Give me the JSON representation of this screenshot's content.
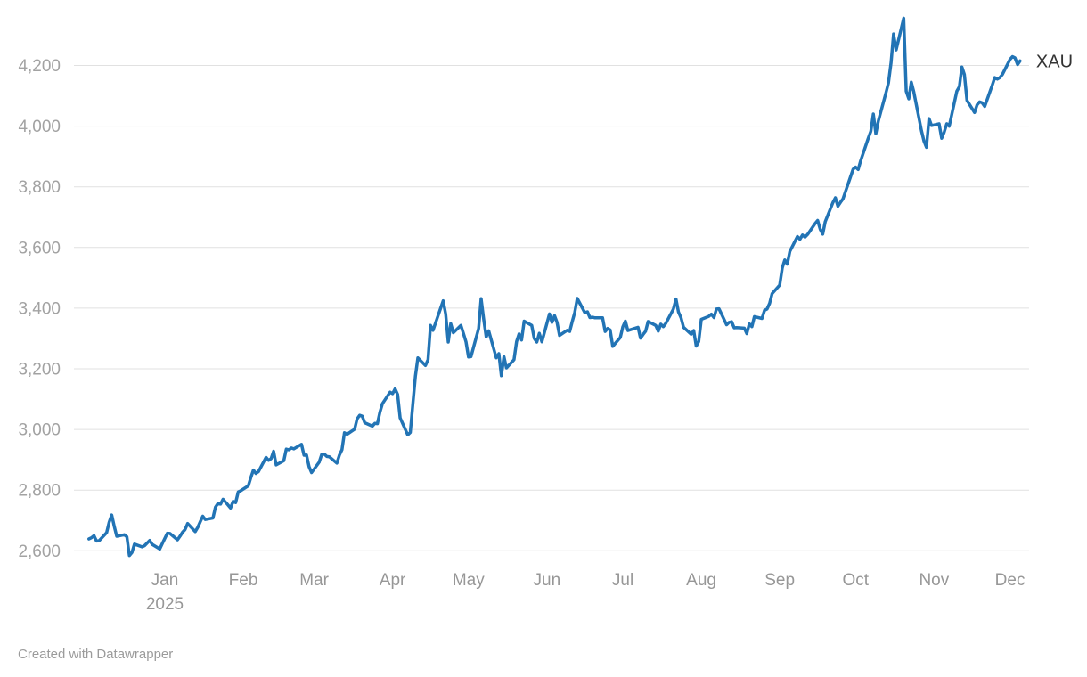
{
  "chart_data": {
    "type": "line",
    "series_name": "XAU",
    "line_color": "#2274b5",
    "grid": "horizontal",
    "legend_position": "end-of-line",
    "y_ticks": [
      2600,
      2800,
      3000,
      3200,
      3400,
      3600,
      3800,
      4000,
      4200
    ],
    "y_tick_labels": [
      "2,600",
      "2,800",
      "3,000",
      "3,200",
      "3,400",
      "3,600",
      "3,800",
      "4,000",
      "4,200"
    ],
    "ylim": [
      2560,
      4380
    ],
    "x_tick_labels": [
      "Jan",
      "Feb",
      "Mar",
      "Apr",
      "May",
      "Jun",
      "Jul",
      "Aug",
      "Sep",
      "Oct",
      "Nov",
      "Dec"
    ],
    "x_year_label": "2025",
    "x_range": [
      "2024-12-02",
      "2025-12-05"
    ],
    "points": [
      [
        "2024-12-02",
        2639
      ],
      [
        "2024-12-03",
        2643
      ],
      [
        "2024-12-04",
        2650
      ],
      [
        "2024-12-05",
        2632
      ],
      [
        "2024-12-06",
        2633
      ],
      [
        "2024-12-09",
        2660
      ],
      [
        "2024-12-10",
        2694
      ],
      [
        "2024-12-11",
        2718
      ],
      [
        "2024-12-12",
        2681
      ],
      [
        "2024-12-13",
        2648
      ],
      [
        "2024-12-16",
        2653
      ],
      [
        "2024-12-17",
        2646
      ],
      [
        "2024-12-18",
        2584
      ],
      [
        "2024-12-19",
        2594
      ],
      [
        "2024-12-20",
        2622
      ],
      [
        "2024-12-23",
        2613
      ],
      [
        "2024-12-24",
        2617
      ],
      [
        "2024-12-26",
        2634
      ],
      [
        "2024-12-27",
        2621
      ],
      [
        "2024-12-30",
        2606
      ],
      [
        "2024-12-31",
        2624
      ],
      [
        "2025-01-02",
        2658
      ],
      [
        "2025-01-03",
        2657
      ],
      [
        "2025-01-06",
        2636
      ],
      [
        "2025-01-07",
        2648
      ],
      [
        "2025-01-08",
        2661
      ],
      [
        "2025-01-09",
        2670
      ],
      [
        "2025-01-10",
        2690
      ],
      [
        "2025-01-13",
        2663
      ],
      [
        "2025-01-14",
        2677
      ],
      [
        "2025-01-15",
        2696
      ],
      [
        "2025-01-16",
        2714
      ],
      [
        "2025-01-17",
        2703
      ],
      [
        "2025-01-20",
        2708
      ],
      [
        "2025-01-21",
        2744
      ],
      [
        "2025-01-22",
        2756
      ],
      [
        "2025-01-23",
        2754
      ],
      [
        "2025-01-24",
        2770
      ],
      [
        "2025-01-27",
        2741
      ],
      [
        "2025-01-28",
        2763
      ],
      [
        "2025-01-29",
        2759
      ],
      [
        "2025-01-30",
        2794
      ],
      [
        "2025-01-31",
        2798
      ],
      [
        "2025-02-03",
        2814
      ],
      [
        "2025-02-04",
        2842
      ],
      [
        "2025-02-05",
        2866
      ],
      [
        "2025-02-06",
        2855
      ],
      [
        "2025-02-07",
        2861
      ],
      [
        "2025-02-10",
        2908
      ],
      [
        "2025-02-11",
        2898
      ],
      [
        "2025-02-12",
        2904
      ],
      [
        "2025-02-13",
        2928
      ],
      [
        "2025-02-14",
        2883
      ],
      [
        "2025-02-17",
        2897
      ],
      [
        "2025-02-18",
        2935
      ],
      [
        "2025-02-19",
        2933
      ],
      [
        "2025-02-20",
        2939
      ],
      [
        "2025-02-21",
        2936
      ],
      [
        "2025-02-24",
        2951
      ],
      [
        "2025-02-25",
        2915
      ],
      [
        "2025-02-26",
        2916
      ],
      [
        "2025-02-27",
        2877
      ],
      [
        "2025-02-28",
        2858
      ],
      [
        "2025-03-03",
        2892
      ],
      [
        "2025-03-04",
        2918
      ],
      [
        "2025-03-05",
        2919
      ],
      [
        "2025-03-06",
        2911
      ],
      [
        "2025-03-07",
        2910
      ],
      [
        "2025-03-10",
        2889
      ],
      [
        "2025-03-11",
        2916
      ],
      [
        "2025-03-12",
        2933
      ],
      [
        "2025-03-13",
        2989
      ],
      [
        "2025-03-14",
        2984
      ],
      [
        "2025-03-17",
        3001
      ],
      [
        "2025-03-18",
        3035
      ],
      [
        "2025-03-19",
        3047
      ],
      [
        "2025-03-20",
        3044
      ],
      [
        "2025-03-21",
        3022
      ],
      [
        "2025-03-24",
        3011
      ],
      [
        "2025-03-25",
        3020
      ],
      [
        "2025-03-26",
        3019
      ],
      [
        "2025-03-27",
        3057
      ],
      [
        "2025-03-28",
        3085
      ],
      [
        "2025-03-31",
        3123
      ],
      [
        "2025-04-01",
        3118
      ],
      [
        "2025-04-02",
        3134
      ],
      [
        "2025-04-03",
        3115
      ],
      [
        "2025-04-04",
        3038
      ],
      [
        "2025-04-07",
        2982
      ],
      [
        "2025-04-08",
        2990
      ],
      [
        "2025-04-09",
        3082
      ],
      [
        "2025-04-10",
        3175
      ],
      [
        "2025-04-11",
        3236
      ],
      [
        "2025-04-14",
        3211
      ],
      [
        "2025-04-15",
        3230
      ],
      [
        "2025-04-16",
        3343
      ],
      [
        "2025-04-17",
        3327
      ],
      [
        "2025-04-21",
        3424
      ],
      [
        "2025-04-22",
        3381
      ],
      [
        "2025-04-23",
        3288
      ],
      [
        "2025-04-24",
        3349
      ],
      [
        "2025-04-25",
        3319
      ],
      [
        "2025-04-28",
        3343
      ],
      [
        "2025-04-29",
        3317
      ],
      [
        "2025-04-30",
        3289
      ],
      [
        "2025-05-01",
        3239
      ],
      [
        "2025-05-02",
        3240
      ],
      [
        "2025-05-05",
        3333
      ],
      [
        "2025-05-06",
        3431
      ],
      [
        "2025-05-07",
        3365
      ],
      [
        "2025-05-08",
        3305
      ],
      [
        "2025-05-09",
        3325
      ],
      [
        "2025-05-12",
        3236
      ],
      [
        "2025-05-13",
        3250
      ],
      [
        "2025-05-14",
        3177
      ],
      [
        "2025-05-15",
        3240
      ],
      [
        "2025-05-16",
        3203
      ],
      [
        "2025-05-19",
        3230
      ],
      [
        "2025-05-20",
        3290
      ],
      [
        "2025-05-21",
        3315
      ],
      [
        "2025-05-22",
        3295
      ],
      [
        "2025-05-23",
        3357
      ],
      [
        "2025-05-26",
        3343
      ],
      [
        "2025-05-27",
        3300
      ],
      [
        "2025-05-28",
        3288
      ],
      [
        "2025-05-29",
        3317
      ],
      [
        "2025-05-30",
        3289
      ],
      [
        "2025-06-02",
        3381
      ],
      [
        "2025-06-03",
        3353
      ],
      [
        "2025-06-04",
        3375
      ],
      [
        "2025-06-05",
        3353
      ],
      [
        "2025-06-06",
        3310
      ],
      [
        "2025-06-09",
        3327
      ],
      [
        "2025-06-10",
        3323
      ],
      [
        "2025-06-11",
        3355
      ],
      [
        "2025-06-12",
        3386
      ],
      [
        "2025-06-13",
        3432
      ],
      [
        "2025-06-16",
        3385
      ],
      [
        "2025-06-17",
        3388
      ],
      [
        "2025-06-18",
        3369
      ],
      [
        "2025-06-19",
        3370
      ],
      [
        "2025-06-20",
        3368
      ],
      [
        "2025-06-23",
        3368
      ],
      [
        "2025-06-24",
        3323
      ],
      [
        "2025-06-25",
        3333
      ],
      [
        "2025-06-26",
        3328
      ],
      [
        "2025-06-27",
        3274
      ],
      [
        "2025-06-30",
        3303
      ],
      [
        "2025-07-01",
        3338
      ],
      [
        "2025-07-02",
        3357
      ],
      [
        "2025-07-03",
        3326
      ],
      [
        "2025-07-07",
        3337
      ],
      [
        "2025-07-08",
        3301
      ],
      [
        "2025-07-09",
        3313
      ],
      [
        "2025-07-10",
        3324
      ],
      [
        "2025-07-11",
        3356
      ],
      [
        "2025-07-14",
        3343
      ],
      [
        "2025-07-15",
        3324
      ],
      [
        "2025-07-16",
        3347
      ],
      [
        "2025-07-17",
        3339
      ],
      [
        "2025-07-18",
        3350
      ],
      [
        "2025-07-21",
        3397
      ],
      [
        "2025-07-22",
        3430
      ],
      [
        "2025-07-23",
        3387
      ],
      [
        "2025-07-24",
        3368
      ],
      [
        "2025-07-25",
        3337
      ],
      [
        "2025-07-28",
        3314
      ],
      [
        "2025-07-29",
        3326
      ],
      [
        "2025-07-30",
        3275
      ],
      [
        "2025-07-31",
        3290
      ],
      [
        "2025-08-01",
        3363
      ],
      [
        "2025-08-04",
        3373
      ],
      [
        "2025-08-05",
        3380
      ],
      [
        "2025-08-06",
        3369
      ],
      [
        "2025-08-07",
        3397
      ],
      [
        "2025-08-08",
        3398
      ],
      [
        "2025-08-11",
        3345
      ],
      [
        "2025-08-12",
        3353
      ],
      [
        "2025-08-13",
        3355
      ],
      [
        "2025-08-14",
        3335
      ],
      [
        "2025-08-15",
        3336
      ],
      [
        "2025-08-18",
        3334
      ],
      [
        "2025-08-19",
        3316
      ],
      [
        "2025-08-20",
        3348
      ],
      [
        "2025-08-21",
        3339
      ],
      [
        "2025-08-22",
        3372
      ],
      [
        "2025-08-25",
        3366
      ],
      [
        "2025-08-26",
        3393
      ],
      [
        "2025-08-27",
        3397
      ],
      [
        "2025-08-28",
        3416
      ],
      [
        "2025-08-29",
        3448
      ],
      [
        "2025-09-01",
        3476
      ],
      [
        "2025-09-02",
        3533
      ],
      [
        "2025-09-03",
        3559
      ],
      [
        "2025-09-04",
        3545
      ],
      [
        "2025-09-05",
        3587
      ],
      [
        "2025-09-08",
        3636
      ],
      [
        "2025-09-09",
        3627
      ],
      [
        "2025-09-10",
        3641
      ],
      [
        "2025-09-11",
        3634
      ],
      [
        "2025-09-12",
        3643
      ],
      [
        "2025-09-15",
        3679
      ],
      [
        "2025-09-16",
        3689
      ],
      [
        "2025-09-17",
        3660
      ],
      [
        "2025-09-18",
        3644
      ],
      [
        "2025-09-19",
        3685
      ],
      [
        "2025-09-22",
        3748
      ],
      [
        "2025-09-23",
        3764
      ],
      [
        "2025-09-24",
        3736
      ],
      [
        "2025-09-25",
        3749
      ],
      [
        "2025-09-26",
        3760
      ],
      [
        "2025-09-29",
        3833
      ],
      [
        "2025-09-30",
        3858
      ],
      [
        "2025-10-01",
        3865
      ],
      [
        "2025-10-02",
        3857
      ],
      [
        "2025-10-03",
        3886
      ],
      [
        "2025-10-06",
        3960
      ],
      [
        "2025-10-07",
        3983
      ],
      [
        "2025-10-08",
        4040
      ],
      [
        "2025-10-09",
        3975
      ],
      [
        "2025-10-10",
        4018
      ],
      [
        "2025-10-13",
        4110
      ],
      [
        "2025-10-14",
        4143
      ],
      [
        "2025-10-15",
        4209
      ],
      [
        "2025-10-16",
        4304
      ],
      [
        "2025-10-17",
        4251
      ],
      [
        "2025-10-20",
        4356
      ],
      [
        "2025-10-21",
        4115
      ],
      [
        "2025-10-22",
        4090
      ],
      [
        "2025-10-23",
        4145
      ],
      [
        "2025-10-24",
        4113
      ],
      [
        "2025-10-27",
        3985
      ],
      [
        "2025-10-28",
        3951
      ],
      [
        "2025-10-29",
        3930
      ],
      [
        "2025-10-30",
        4025
      ],
      [
        "2025-10-31",
        4002
      ],
      [
        "2025-11-03",
        4008
      ],
      [
        "2025-11-04",
        3960
      ],
      [
        "2025-11-05",
        3980
      ],
      [
        "2025-11-06",
        4008
      ],
      [
        "2025-11-07",
        4000
      ],
      [
        "2025-11-10",
        4115
      ],
      [
        "2025-11-11",
        4130
      ],
      [
        "2025-11-12",
        4195
      ],
      [
        "2025-11-13",
        4170
      ],
      [
        "2025-11-14",
        4085
      ],
      [
        "2025-11-17",
        4045
      ],
      [
        "2025-11-18",
        4070
      ],
      [
        "2025-11-19",
        4080
      ],
      [
        "2025-11-20",
        4077
      ],
      [
        "2025-11-21",
        4065
      ],
      [
        "2025-11-24",
        4135
      ],
      [
        "2025-11-25",
        4160
      ],
      [
        "2025-11-26",
        4155
      ],
      [
        "2025-11-27",
        4160
      ],
      [
        "2025-11-28",
        4170
      ],
      [
        "2025-12-01",
        4220
      ],
      [
        "2025-12-02",
        4229
      ],
      [
        "2025-12-03",
        4225
      ],
      [
        "2025-12-04",
        4203
      ],
      [
        "2025-12-05",
        4215
      ]
    ]
  },
  "colors": {
    "line": "#2274b5",
    "grid": "#e1e1e1",
    "axis_text": "#9c9c9c",
    "series_label_text": "#333333",
    "background": "#ffffff"
  },
  "footer": {
    "credit": "Created with Datawrapper"
  }
}
